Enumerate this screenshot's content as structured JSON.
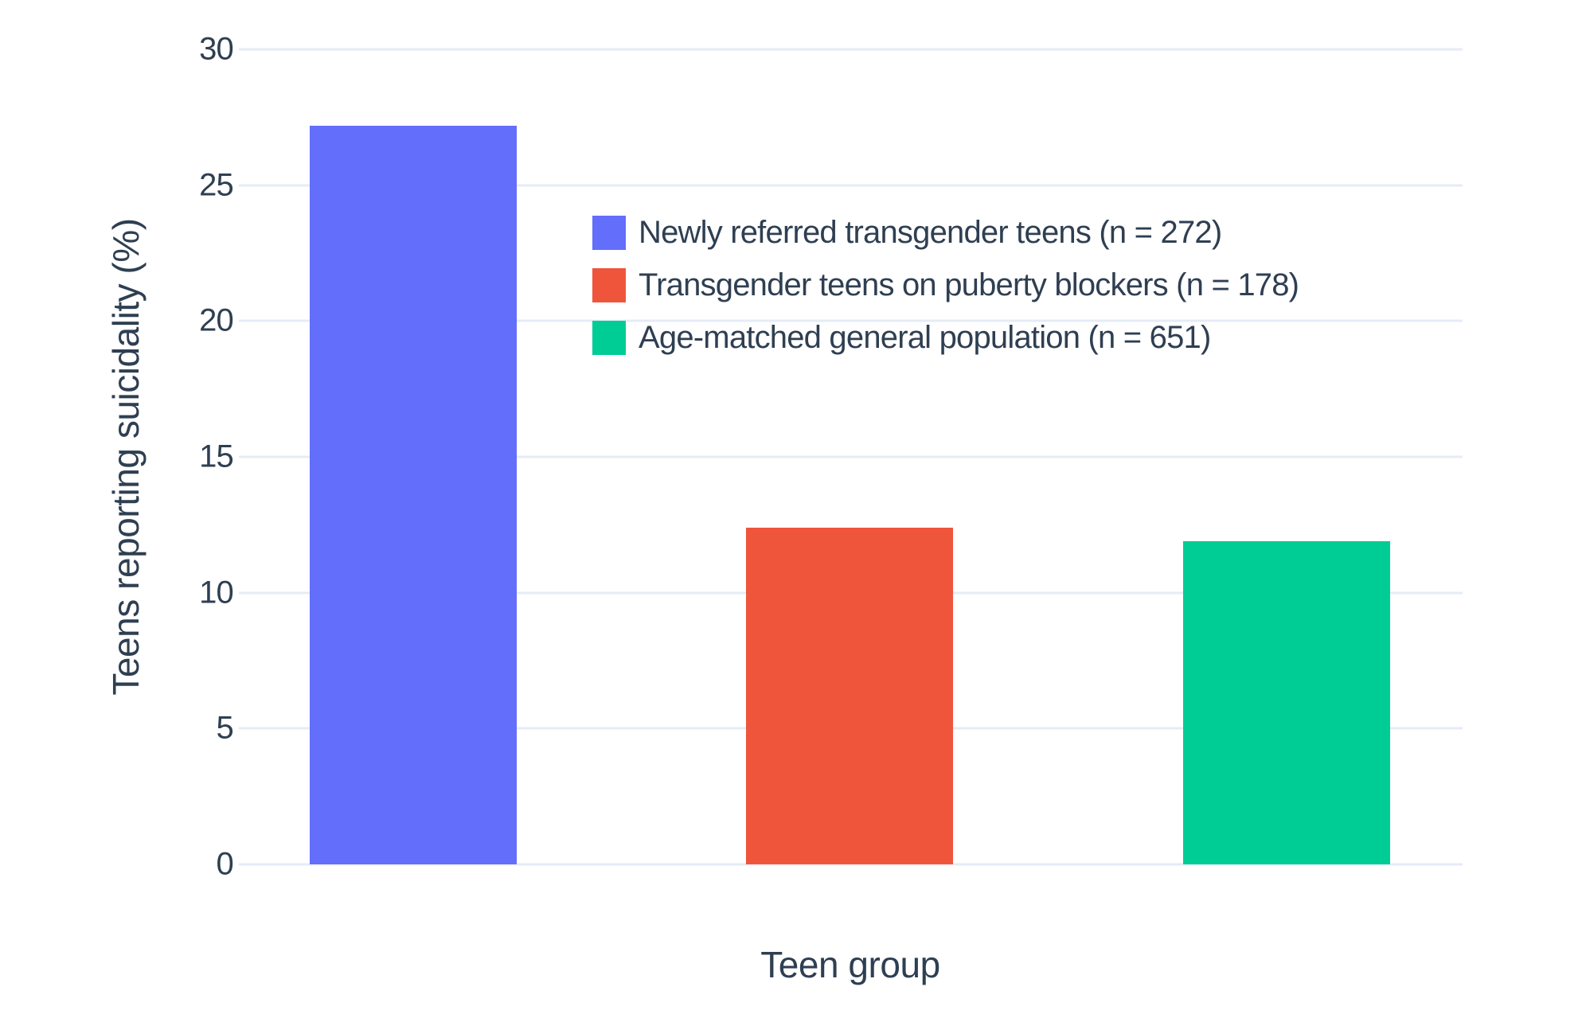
{
  "chart_data": {
    "type": "bar",
    "title": "",
    "xlabel": "Teen group",
    "ylabel": "Teens reporting suicidality (%)",
    "categories": [
      "Newly referred transgender teens (n = 272)",
      "Transgender teens on puberty blockers (n = 178)",
      "Age-matched general population (n = 651)"
    ],
    "values": [
      27.2,
      12.4,
      11.9
    ],
    "colors": [
      "#636EFA",
      "#EF553B",
      "#00CC96"
    ],
    "ylim": [
      0,
      30
    ],
    "yticks": [
      0,
      5,
      10,
      15,
      20,
      25,
      30
    ],
    "grid": true,
    "background": "#ffffff",
    "gridline_color": "#E5ECF6",
    "text_color": "#2f3f52",
    "legend_position": "inside-top-center"
  }
}
